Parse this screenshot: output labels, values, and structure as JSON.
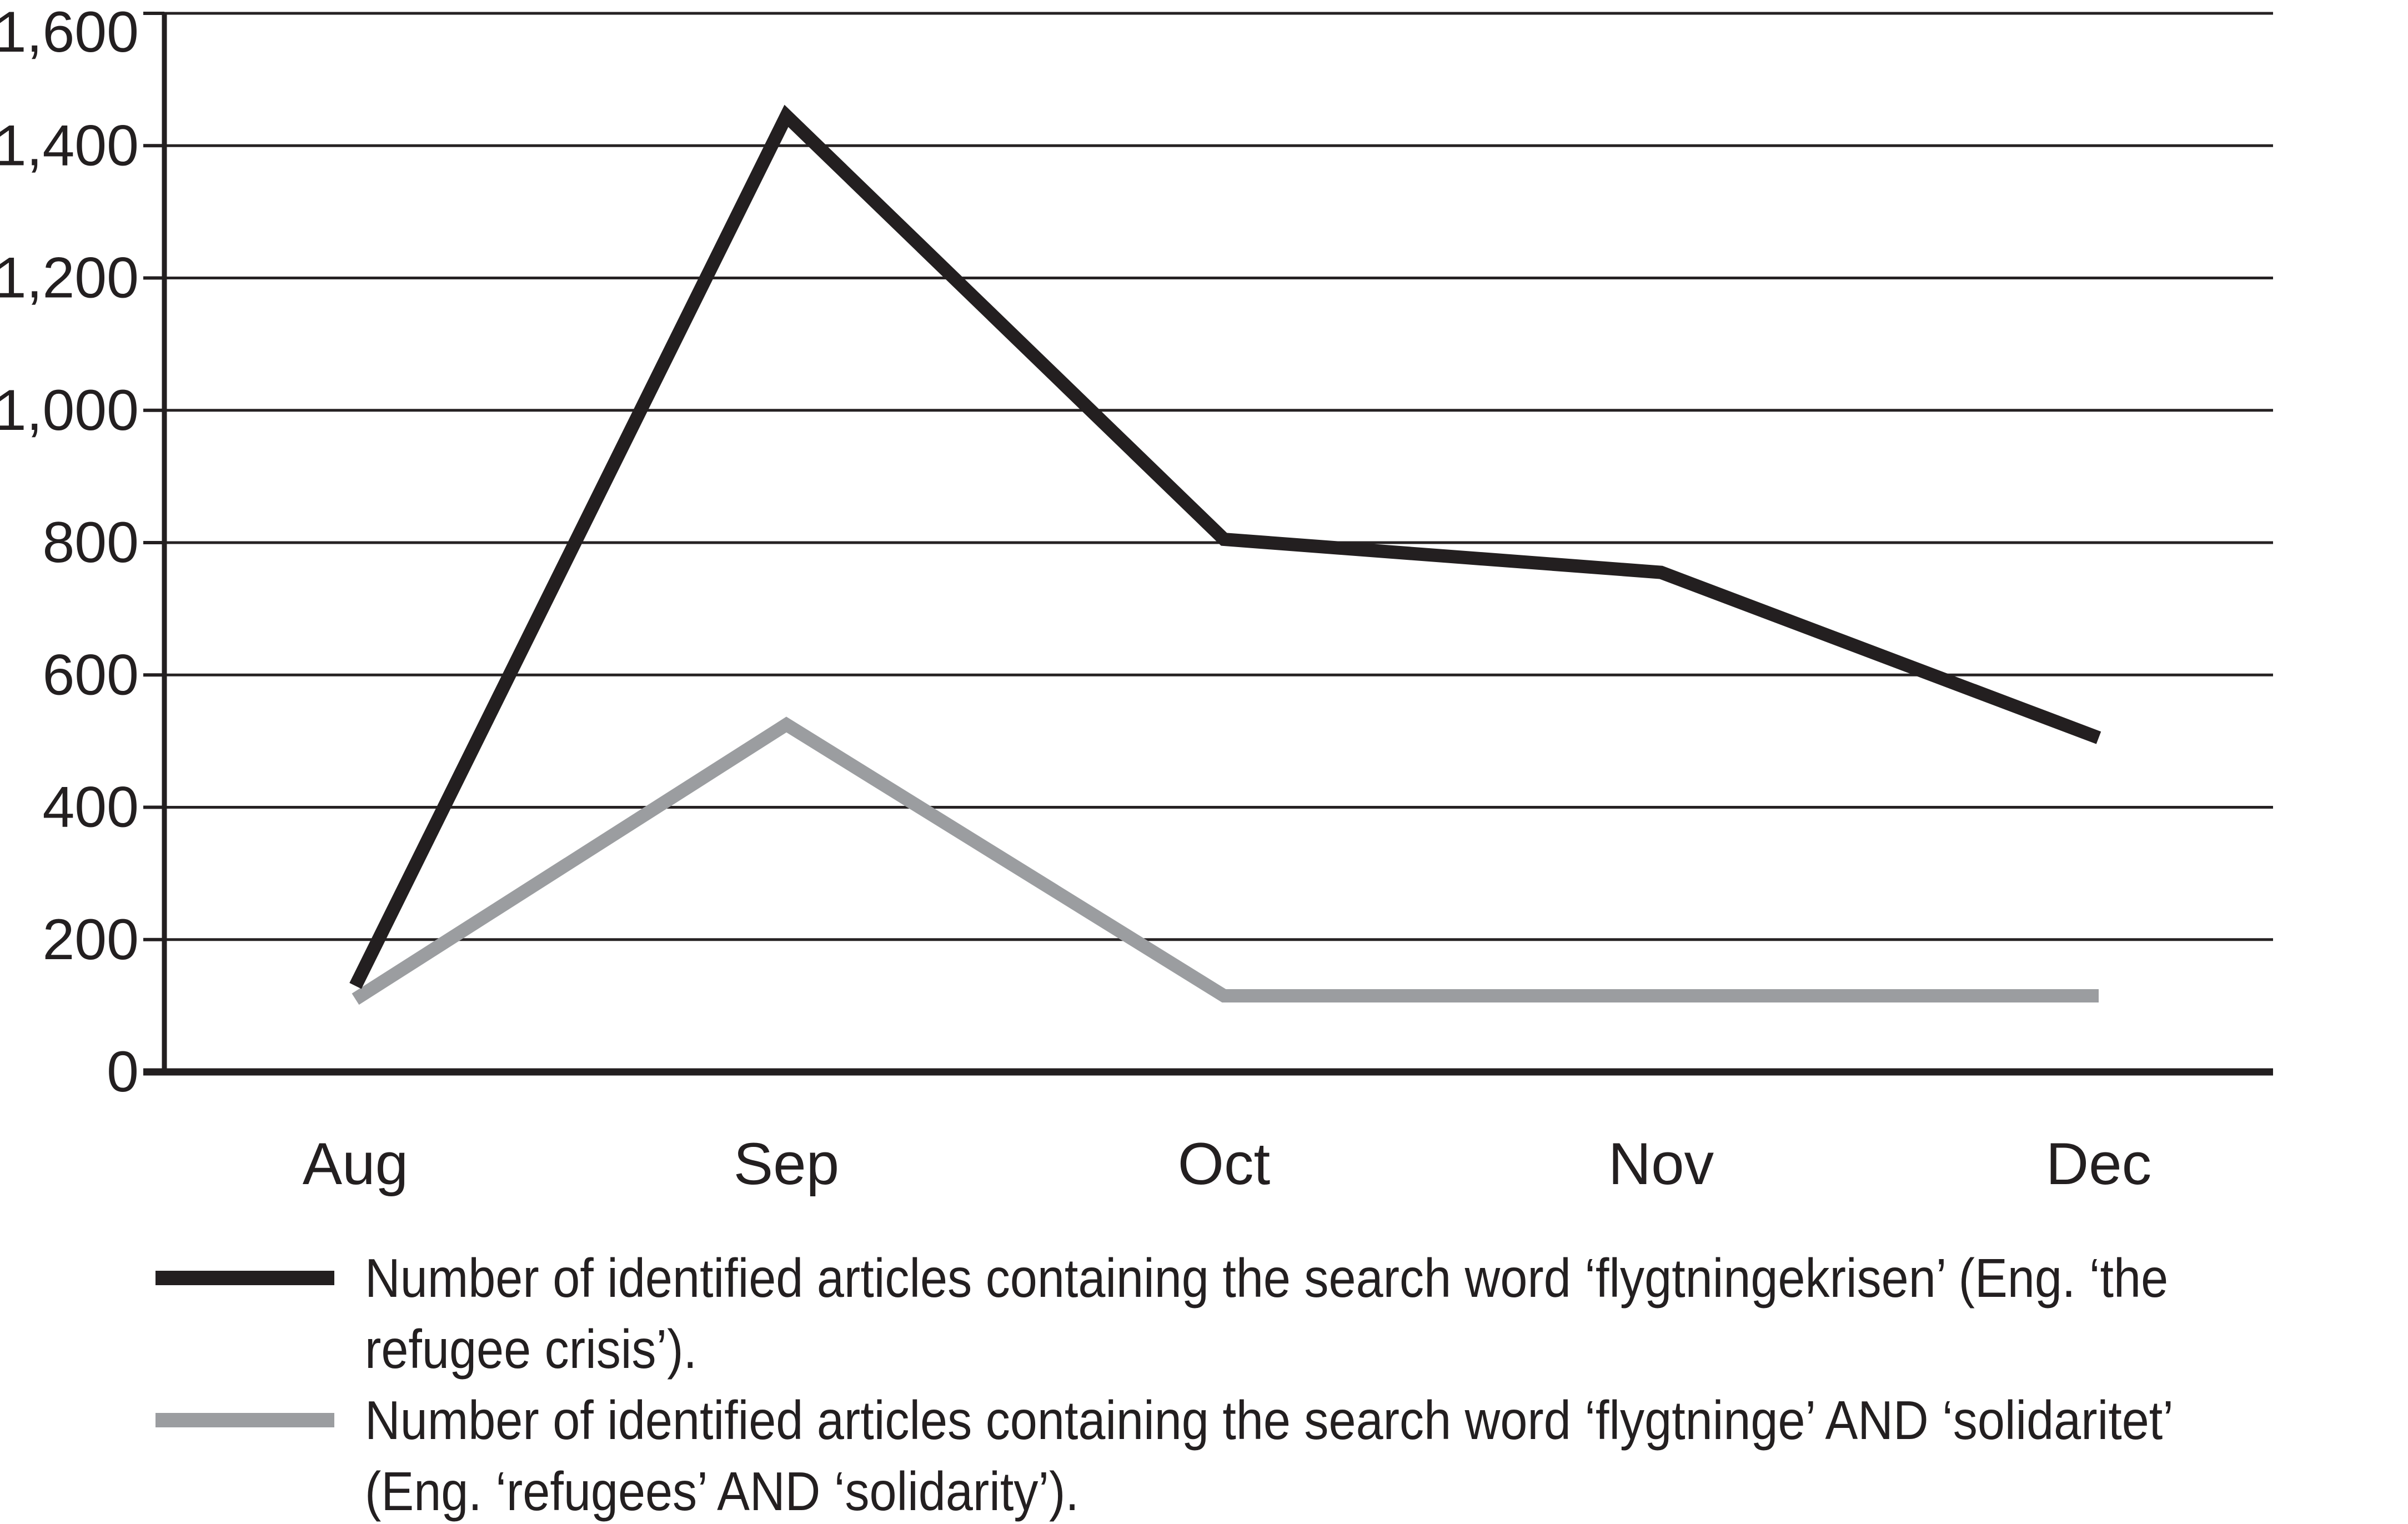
{
  "figure": {
    "background": "#ffffff",
    "ink_color": "#231f20"
  },
  "chart_data": {
    "type": "line",
    "title": "",
    "xlabel": "",
    "ylabel": "",
    "categories": [
      "Aug",
      "Sep",
      "Oct",
      "Nov",
      "Dec"
    ],
    "series": [
      {
        "name": "Number of identified articles containing the search word ‘flygtningekrisen’ (Eng. ‘the refugee crisis’).",
        "color": "#231f20",
        "values": [
          130,
          1445,
          805,
          755,
          505
        ]
      },
      {
        "name": "Number of identified articles containing the search word ‘flygtninge’ AND ‘solidaritet’ (Eng. ‘refugees’ AND ‘solidarity’).",
        "color": "#9b9da0",
        "values": [
          110,
          525,
          115,
          115,
          115
        ]
      }
    ],
    "ylim": [
      0,
      1600
    ],
    "ytick_step": 200,
    "ytick_labels": [
      "0",
      "200",
      "400",
      "600",
      "800",
      "1,000",
      "1,200",
      "1,400",
      "1,600"
    ],
    "grid": true,
    "legend_position": "bottom-left"
  },
  "legend": {
    "items": [
      {
        "swatch_color": "#231f20",
        "lines": [
          "Number of identified articles containing the search word ‘flygtningekrisen’ (Eng. ‘the",
          "refugee crisis’)."
        ]
      },
      {
        "swatch_color": "#9b9da0",
        "lines": [
          "Number of identified articles containing the search word ‘flygtninge’ AND ‘solidaritet’",
          "(Eng. ‘refugees’ AND ‘solidarity’)."
        ]
      }
    ]
  }
}
